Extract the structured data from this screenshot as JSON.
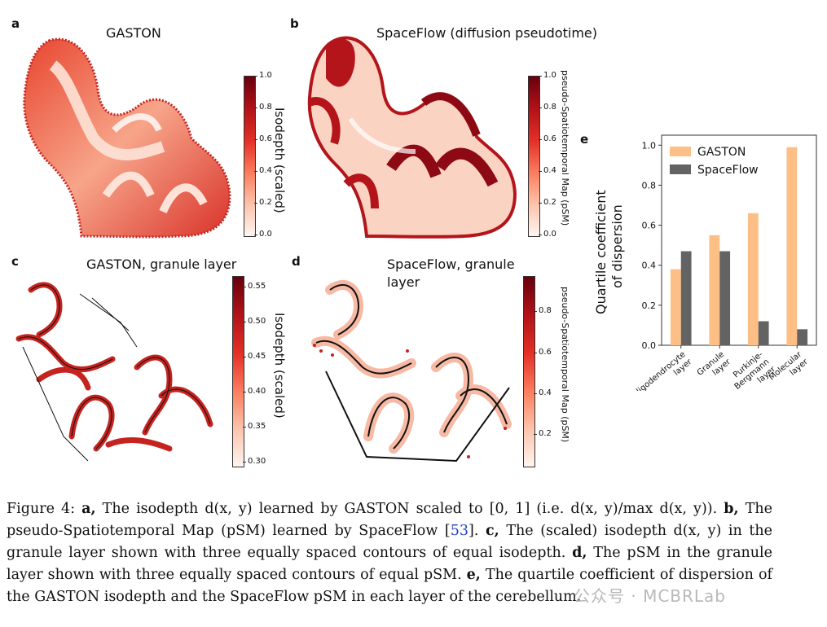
{
  "panels": {
    "a": {
      "letter": "a",
      "title": "GASTON",
      "colorbar_label": "Isodepth (scaled)",
      "ticks": [
        "1.0",
        "0.8",
        "0.6",
        "0.4",
        "0.2",
        "0.0"
      ]
    },
    "b": {
      "letter": "b",
      "title": "SpaceFlow (diffusion pseudotime)",
      "colorbar_label": "pseudo-Spatiotemporal Map (pSM)",
      "ticks": [
        "1.0",
        "0.8",
        "0.6",
        "0.4",
        "0.2",
        "0.0"
      ]
    },
    "c": {
      "letter": "c",
      "title": "GASTON, granule layer",
      "colorbar_label": "Isodepth (scaled)",
      "ticks": [
        "0.55",
        "0.50",
        "0.45",
        "0.40",
        "0.35",
        "0.30"
      ]
    },
    "d": {
      "letter": "d",
      "title_line1": "SpaceFlow, granule",
      "title_line2": "layer",
      "colorbar_label": "pseudo-Spatiotemporal Map (pSM)",
      "ticks": [
        "0.8",
        "0.6",
        "0.4",
        "0.2"
      ]
    },
    "e": {
      "letter": "e"
    }
  },
  "chart_data": {
    "type": "bar",
    "ylabel_line1": "Quartile coefficient",
    "ylabel_line2": "of dispersion",
    "categories": [
      [
        "Oligodendrocyte",
        "layer"
      ],
      [
        "Granule",
        "layer"
      ],
      [
        "Purkinje-",
        "Bergmann",
        "layer"
      ],
      [
        "Molecular",
        "layer"
      ]
    ],
    "series": [
      {
        "name": "GASTON",
        "color": "#fdbf86",
        "values": [
          0.38,
          0.55,
          0.66,
          0.99
        ]
      },
      {
        "name": "SpaceFlow",
        "color": "#636363",
        "values": [
          0.47,
          0.47,
          0.12,
          0.08
        ]
      }
    ],
    "ylim": [
      0,
      1.05
    ],
    "yticks": [
      "0.0",
      "0.2",
      "0.4",
      "0.6",
      "0.8",
      "1.0"
    ],
    "legend": "top-left"
  },
  "caption": {
    "lead": "Figure 4: ",
    "a_label": "a,",
    "a_text": " The isodepth d(x, y) learned by GASTON scaled to [0, 1] (i.e. d(x, y)/max d(x, y)). ",
    "b_label": "b,",
    "b_text": " The pseudo-Spatiotemporal Map (pSM) learned by SpaceFlow [",
    "cite": "53",
    "b_text2": "]. ",
    "c_label": "c,",
    "c_text": " The (scaled) isodepth d(x, y) in the granule layer shown with three equally spaced contours of equal isodepth. ",
    "d_label": "d,",
    "d_text": " The pSM in the granule layer shown with three equally spaced contours of equal pSM. ",
    "e_label": "e,",
    "e_text": " The quartile coefficient of dispersion of the GASTON isodepth and the SpaceFlow pSM in each layer of the cerebellum."
  },
  "watermark": "公众号 · MCBRLab"
}
